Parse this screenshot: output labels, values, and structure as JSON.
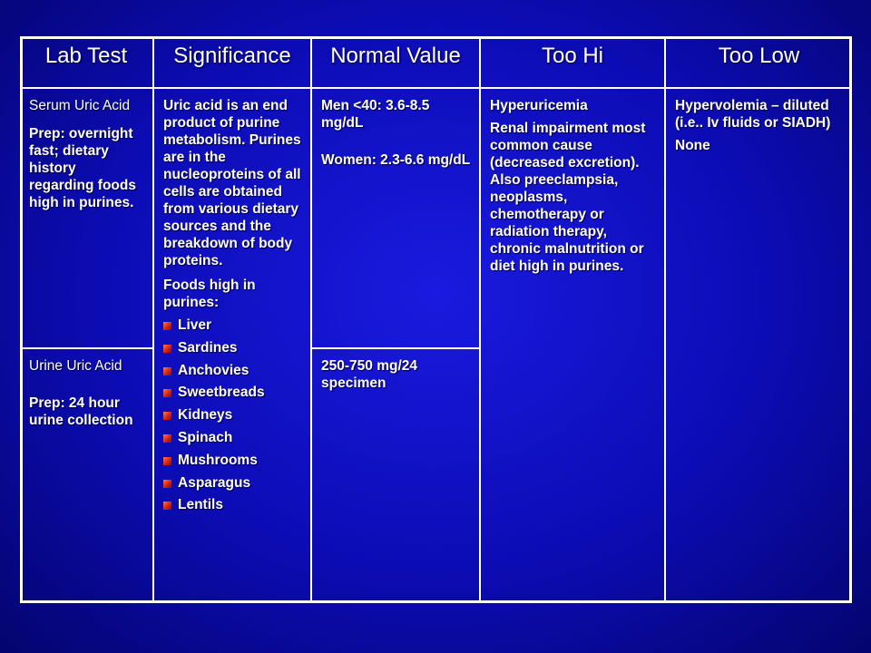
{
  "table": {
    "headers": [
      "Lab Test",
      "Significance",
      "Normal Value",
      "Too Hi",
      "Too Low"
    ],
    "serum": {
      "test_name": "Serum Uric Acid",
      "prep": "Prep: overnight fast; dietary history regarding foods high in purines.",
      "normal_men": "Men <40: 3.6-8.5 mg/dL",
      "normal_women": "Women: 2.3-6.6 mg/dL"
    },
    "urine": {
      "test_name": "Urine Uric Acid",
      "prep": "Prep: 24 hour urine collection",
      "normal": "250-750 mg/24 specimen"
    },
    "significance": {
      "text": "Uric acid is an end product of purine metabolism. Purines are in the nucleoproteins of all cells are obtained from various dietary sources and the breakdown of body proteins.",
      "foods_heading": "Foods high in purines:",
      "foods": [
        "Liver",
        "Sardines",
        "Anchovies",
        "Sweetbreads",
        "Kidneys",
        "Spinach",
        "Mushrooms",
        "Asparagus",
        "Lentils"
      ]
    },
    "too_hi": {
      "title": "Hyperuricemia",
      "text": "Renal impairment most common cause (decreased excretion). Also preeclampsia, neoplasms, chemotherapy or radiation therapy, chronic malnutrition or diet high in purines."
    },
    "too_low": {
      "text": "Hypervolemia – diluted (i.e.. Iv fluids or SIADH)",
      "none": "None"
    }
  },
  "colors": {
    "background": "#0c0cb4",
    "grid": "#ffffff",
    "bullet": "#d21e0a"
  }
}
